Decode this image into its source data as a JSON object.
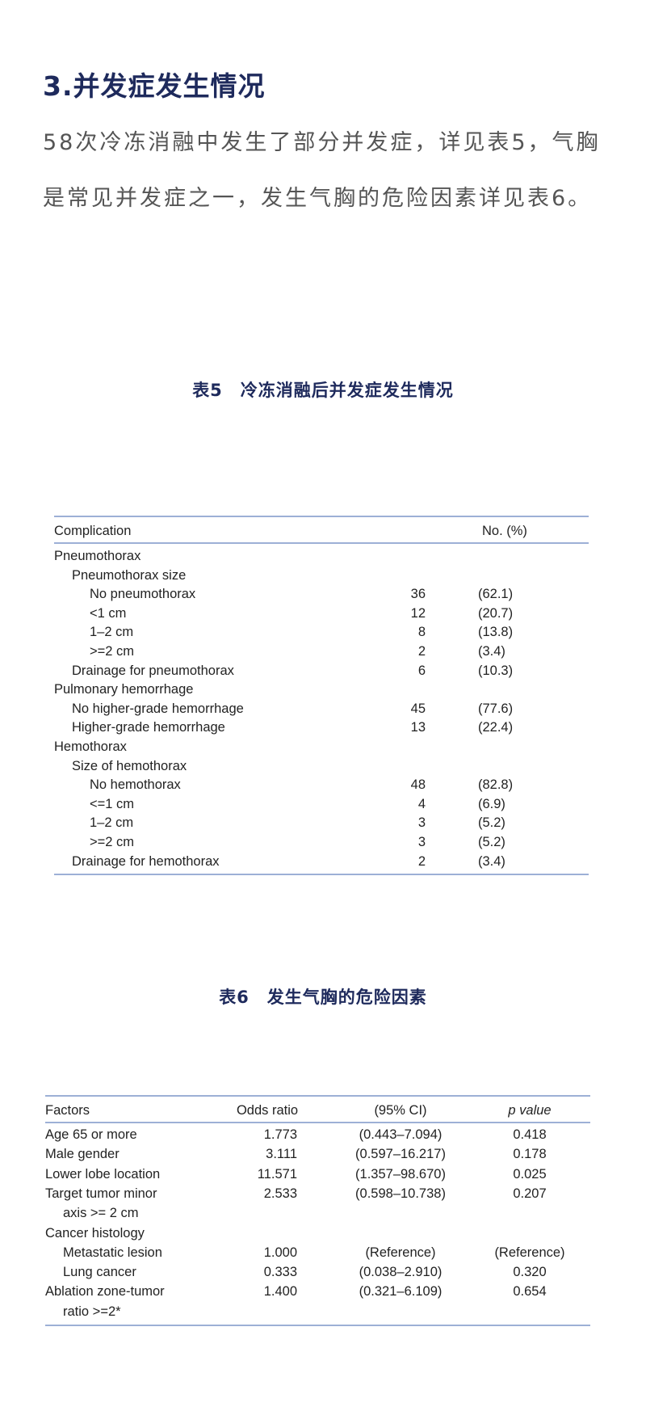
{
  "section_title": "3.并发症发生情况",
  "paragraph": "58次冷冻消融中发生了部分并发症，详见表5，气胸是常见并发症之一，发生气胸的危险因素详见表6。",
  "accent_color": "#1e2a5c",
  "table5": {
    "caption": "表5　冷冻消融后并发症发生情况",
    "headers": [
      "Complication",
      "No. (%)"
    ],
    "rows": [
      {
        "label": "Pneumothorax",
        "indent": 0,
        "n": "",
        "pct": ""
      },
      {
        "label": "Pneumothorax size",
        "indent": 1,
        "n": "",
        "pct": ""
      },
      {
        "label": "No pneumothorax",
        "indent": 2,
        "n": "36",
        "pct": "(62.1)"
      },
      {
        "label": "<1 cm",
        "indent": 2,
        "n": "12",
        "pct": "(20.7)"
      },
      {
        "label": "1–2 cm",
        "indent": 2,
        "n": "8",
        "pct": "(13.8)"
      },
      {
        "label": ">=2 cm",
        "indent": 2,
        "n": "2",
        "pct": "(3.4)"
      },
      {
        "label": "Drainage for pneumothorax",
        "indent": 1,
        "n": "6",
        "pct": "(10.3)"
      },
      {
        "label": "Pulmonary hemorrhage",
        "indent": 0,
        "n": "",
        "pct": ""
      },
      {
        "label": "No higher-grade hemorrhage",
        "indent": 1,
        "n": "45",
        "pct": "(77.6)"
      },
      {
        "label": "Higher-grade hemorrhage",
        "indent": 1,
        "n": "13",
        "pct": "(22.4)"
      },
      {
        "label": "Hemothorax",
        "indent": 0,
        "n": "",
        "pct": ""
      },
      {
        "label": "Size of hemothorax",
        "indent": 1,
        "n": "",
        "pct": ""
      },
      {
        "label": "No hemothorax",
        "indent": 2,
        "n": "48",
        "pct": "(82.8)"
      },
      {
        "label": "<=1 cm",
        "indent": 2,
        "n": "4",
        "pct": "(6.9)"
      },
      {
        "label": "1–2 cm",
        "indent": 2,
        "n": "3",
        "pct": "(5.2)"
      },
      {
        "label": ">=2 cm",
        "indent": 2,
        "n": "3",
        "pct": "(5.2)"
      },
      {
        "label": "Drainage for hemothorax",
        "indent": 1,
        "n": "2",
        "pct": "(3.4)"
      }
    ]
  },
  "table6": {
    "caption": "表6　发生气胸的危险因素",
    "headers": [
      "Factors",
      "Odds ratio",
      "(95% CI)",
      "p value"
    ],
    "rows": [
      {
        "label": "Age 65 or more",
        "indent": 0,
        "or": "1.773",
        "ci": "(0.443–7.094)",
        "p": "0.418"
      },
      {
        "label": "Male gender",
        "indent": 0,
        "or": "3.111",
        "ci": "(0.597–16.217)",
        "p": "0.178"
      },
      {
        "label": "Lower lobe location",
        "indent": 0,
        "or": "11.571",
        "ci": "(1.357–98.670)",
        "p": "0.025"
      },
      {
        "label": "Target tumor minor",
        "indent": 0,
        "or": "2.533",
        "ci": "(0.598–10.738)",
        "p": "0.207"
      },
      {
        "label": "axis >= 2 cm",
        "indent": 1,
        "or": "",
        "ci": "",
        "p": ""
      },
      {
        "label": "Cancer histology",
        "indent": 0,
        "or": "",
        "ci": "",
        "p": ""
      },
      {
        "label": "Metastatic lesion",
        "indent": 1,
        "or": "1.000",
        "ci": "(Reference)",
        "p": "(Reference)"
      },
      {
        "label": "Lung cancer",
        "indent": 1,
        "or": "0.333",
        "ci": "(0.038–2.910)",
        "p": "0.320"
      },
      {
        "label": "Ablation zone-tumor",
        "indent": 0,
        "or": "1.400",
        "ci": "(0.321–6.109)",
        "p": "0.654"
      },
      {
        "label": "ratio >=2*",
        "indent": 1,
        "or": "",
        "ci": "",
        "p": ""
      }
    ]
  }
}
